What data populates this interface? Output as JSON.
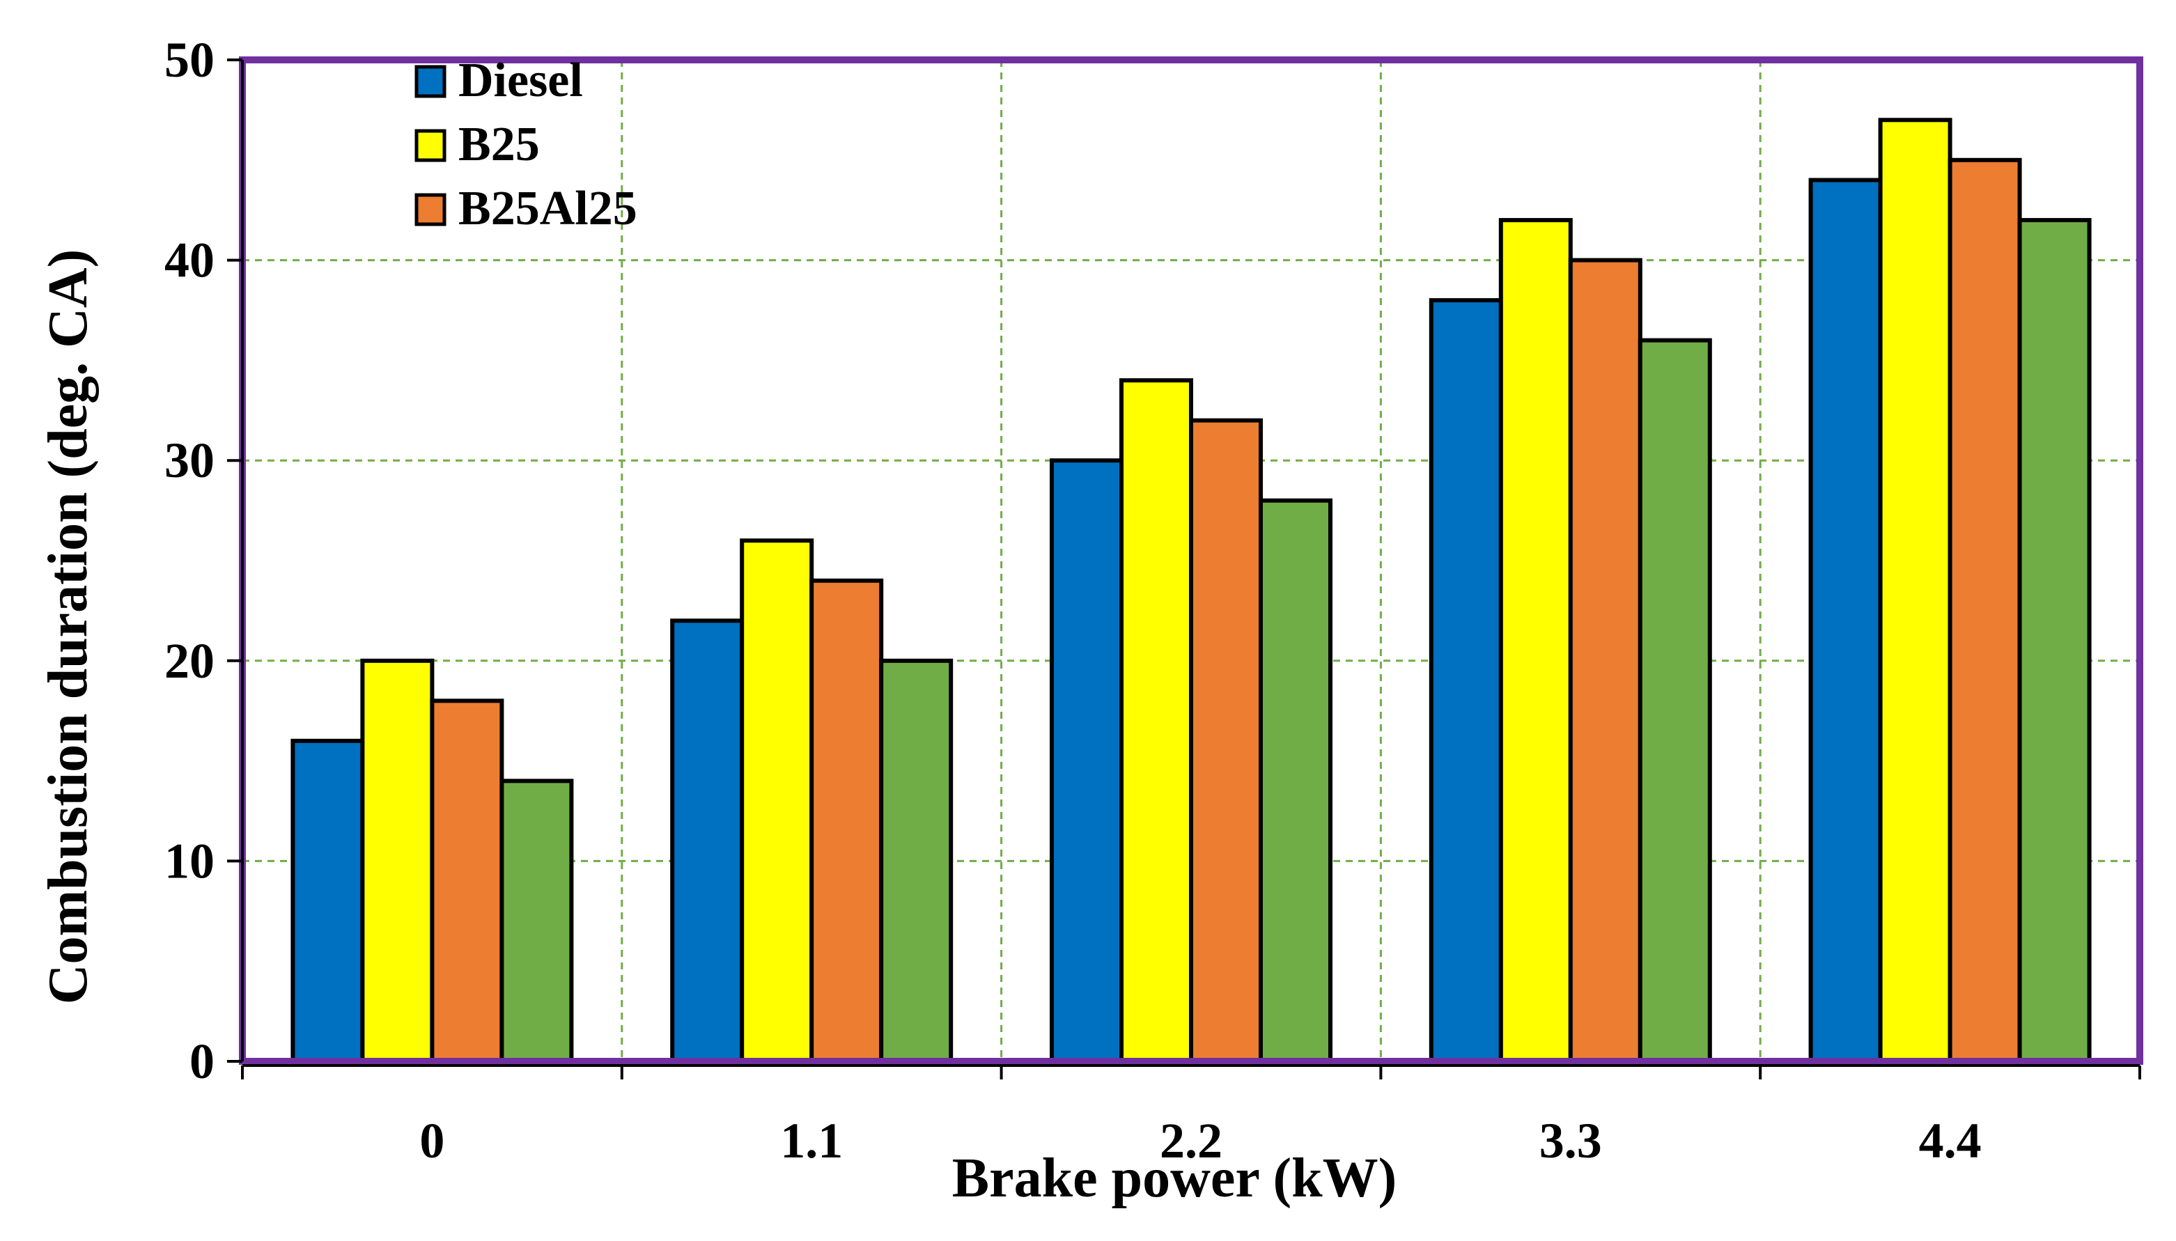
{
  "chart_data": {
    "type": "bar",
    "xlabel": "Brake power (kW)",
    "ylabel": "Combustion duration (deg. CA)",
    "categories": [
      "0",
      "1.1",
      "2.2",
      "3.3",
      "4.4"
    ],
    "ylim": [
      0,
      50
    ],
    "yticks": [
      0,
      10,
      20,
      30,
      40,
      50
    ],
    "grid": true,
    "legend_position": "top-left",
    "series": [
      {
        "name": "Diesel",
        "color": "#0070c0",
        "values": [
          16,
          22,
          30,
          38,
          44
        ]
      },
      {
        "name": "B25",
        "color": "#ffff00",
        "values": [
          20,
          26,
          34,
          42,
          47
        ]
      },
      {
        "name": "B25Al25",
        "color": "#ed7d31",
        "values": [
          18,
          24,
          32,
          40,
          45
        ]
      },
      {
        "color": "#70ad47",
        "values": [
          14,
          20,
          28,
          36,
          42
        ]
      }
    ],
    "frame_color": "#7030a0",
    "grid_color": "#70ad47"
  }
}
